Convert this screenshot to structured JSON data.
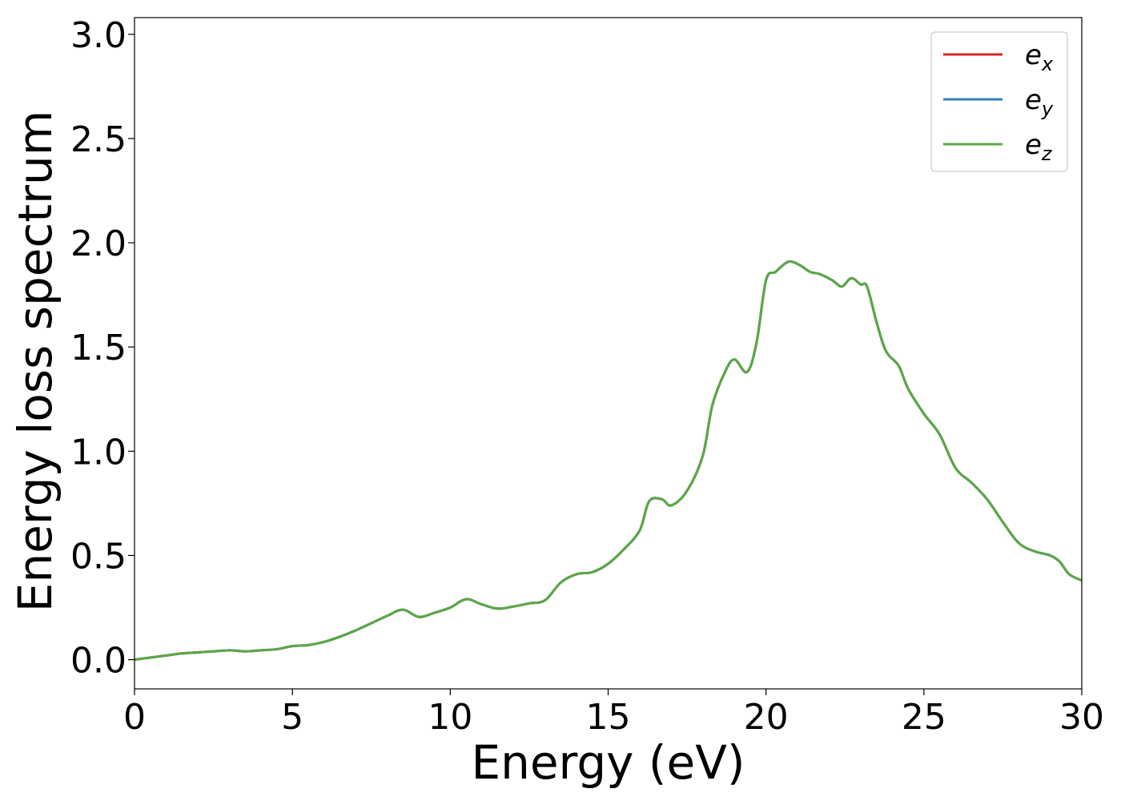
{
  "chart_data": {
    "type": "line",
    "xlabel": "Energy (eV)",
    "ylabel": "Energy loss spectrum",
    "xlim": [
      0,
      30
    ],
    "ylim": [
      -0.14,
      3.08
    ],
    "xticks": [
      0,
      5,
      10,
      15,
      20,
      25,
      30
    ],
    "xtick_labels": [
      "0",
      "5",
      "10",
      "15",
      "20",
      "25",
      "30"
    ],
    "yticks": [
      0.0,
      0.5,
      1.0,
      1.5,
      2.0,
      2.5,
      3.0
    ],
    "ytick_labels": [
      "0.0",
      "0.5",
      "1.0",
      "1.5",
      "2.0",
      "2.5",
      "3.0"
    ],
    "grid": false,
    "legend_position": "top-right",
    "x": [
      0,
      0.5,
      1.0,
      1.5,
      2.0,
      2.5,
      3.0,
      3.5,
      4.0,
      4.5,
      5.0,
      5.5,
      6.0,
      6.5,
      7.0,
      7.5,
      8.0,
      8.5,
      9.0,
      9.5,
      10.0,
      10.5,
      11.0,
      11.5,
      12.0,
      12.5,
      13.0,
      13.5,
      14.0,
      14.5,
      15.0,
      15.5,
      16.0,
      16.3,
      16.7,
      17.0,
      17.5,
      18.0,
      18.3,
      18.7,
      19.0,
      19.4,
      19.7,
      20.0,
      20.3,
      20.6,
      20.8,
      21.1,
      21.4,
      21.7,
      22.1,
      22.4,
      22.7,
      23.0,
      23.2,
      23.5,
      23.8,
      24.2,
      24.5,
      25.0,
      25.5,
      26.0,
      26.5,
      27.0,
      27.5,
      28.0,
      28.5,
      29.0,
      29.3,
      29.6,
      30.0
    ],
    "series": [
      {
        "name": "e_x",
        "label_base": "e",
        "label_sub": "x",
        "color": "#d62728",
        "y": [
          0.0,
          0.01,
          0.02,
          0.03,
          0.035,
          0.04,
          0.045,
          0.04,
          0.045,
          0.05,
          0.065,
          0.07,
          0.085,
          0.11,
          0.14,
          0.175,
          0.21,
          0.24,
          0.205,
          0.225,
          0.25,
          0.29,
          0.265,
          0.245,
          0.255,
          0.27,
          0.285,
          0.37,
          0.41,
          0.42,
          0.46,
          0.53,
          0.62,
          0.76,
          0.77,
          0.74,
          0.81,
          0.98,
          1.22,
          1.38,
          1.44,
          1.38,
          1.52,
          1.82,
          1.86,
          1.9,
          1.91,
          1.89,
          1.86,
          1.85,
          1.82,
          1.79,
          1.83,
          1.8,
          1.79,
          1.62,
          1.48,
          1.41,
          1.3,
          1.18,
          1.08,
          0.92,
          0.85,
          0.77,
          0.66,
          0.56,
          0.52,
          0.5,
          0.47,
          0.41,
          0.38
        ]
      },
      {
        "name": "e_y",
        "label_base": "e",
        "label_sub": "y",
        "color": "#377eb8",
        "y": [
          0.0,
          0.01,
          0.02,
          0.03,
          0.035,
          0.04,
          0.045,
          0.04,
          0.045,
          0.05,
          0.065,
          0.07,
          0.085,
          0.11,
          0.14,
          0.175,
          0.21,
          0.24,
          0.205,
          0.225,
          0.25,
          0.29,
          0.265,
          0.245,
          0.255,
          0.27,
          0.285,
          0.37,
          0.41,
          0.42,
          0.46,
          0.53,
          0.62,
          0.76,
          0.77,
          0.74,
          0.81,
          0.98,
          1.22,
          1.38,
          1.44,
          1.38,
          1.52,
          1.82,
          1.86,
          1.9,
          1.91,
          1.89,
          1.86,
          1.85,
          1.82,
          1.79,
          1.83,
          1.8,
          1.79,
          1.62,
          1.48,
          1.41,
          1.3,
          1.18,
          1.08,
          0.92,
          0.85,
          0.77,
          0.66,
          0.56,
          0.52,
          0.5,
          0.47,
          0.41,
          0.38
        ]
      },
      {
        "name": "e_z",
        "label_base": "e",
        "label_sub": "z",
        "color": "#5aa845",
        "y": [
          0.0,
          0.01,
          0.02,
          0.03,
          0.035,
          0.04,
          0.045,
          0.04,
          0.045,
          0.05,
          0.065,
          0.07,
          0.085,
          0.11,
          0.14,
          0.175,
          0.21,
          0.24,
          0.205,
          0.225,
          0.25,
          0.29,
          0.265,
          0.245,
          0.255,
          0.27,
          0.285,
          0.37,
          0.41,
          0.42,
          0.46,
          0.53,
          0.62,
          0.76,
          0.77,
          0.74,
          0.81,
          0.98,
          1.22,
          1.38,
          1.44,
          1.38,
          1.52,
          1.82,
          1.86,
          1.9,
          1.91,
          1.89,
          1.86,
          1.85,
          1.82,
          1.79,
          1.83,
          1.8,
          1.79,
          1.62,
          1.48,
          1.41,
          1.3,
          1.18,
          1.08,
          0.92,
          0.85,
          0.77,
          0.66,
          0.56,
          0.52,
          0.5,
          0.47,
          0.41,
          0.38
        ]
      }
    ]
  }
}
